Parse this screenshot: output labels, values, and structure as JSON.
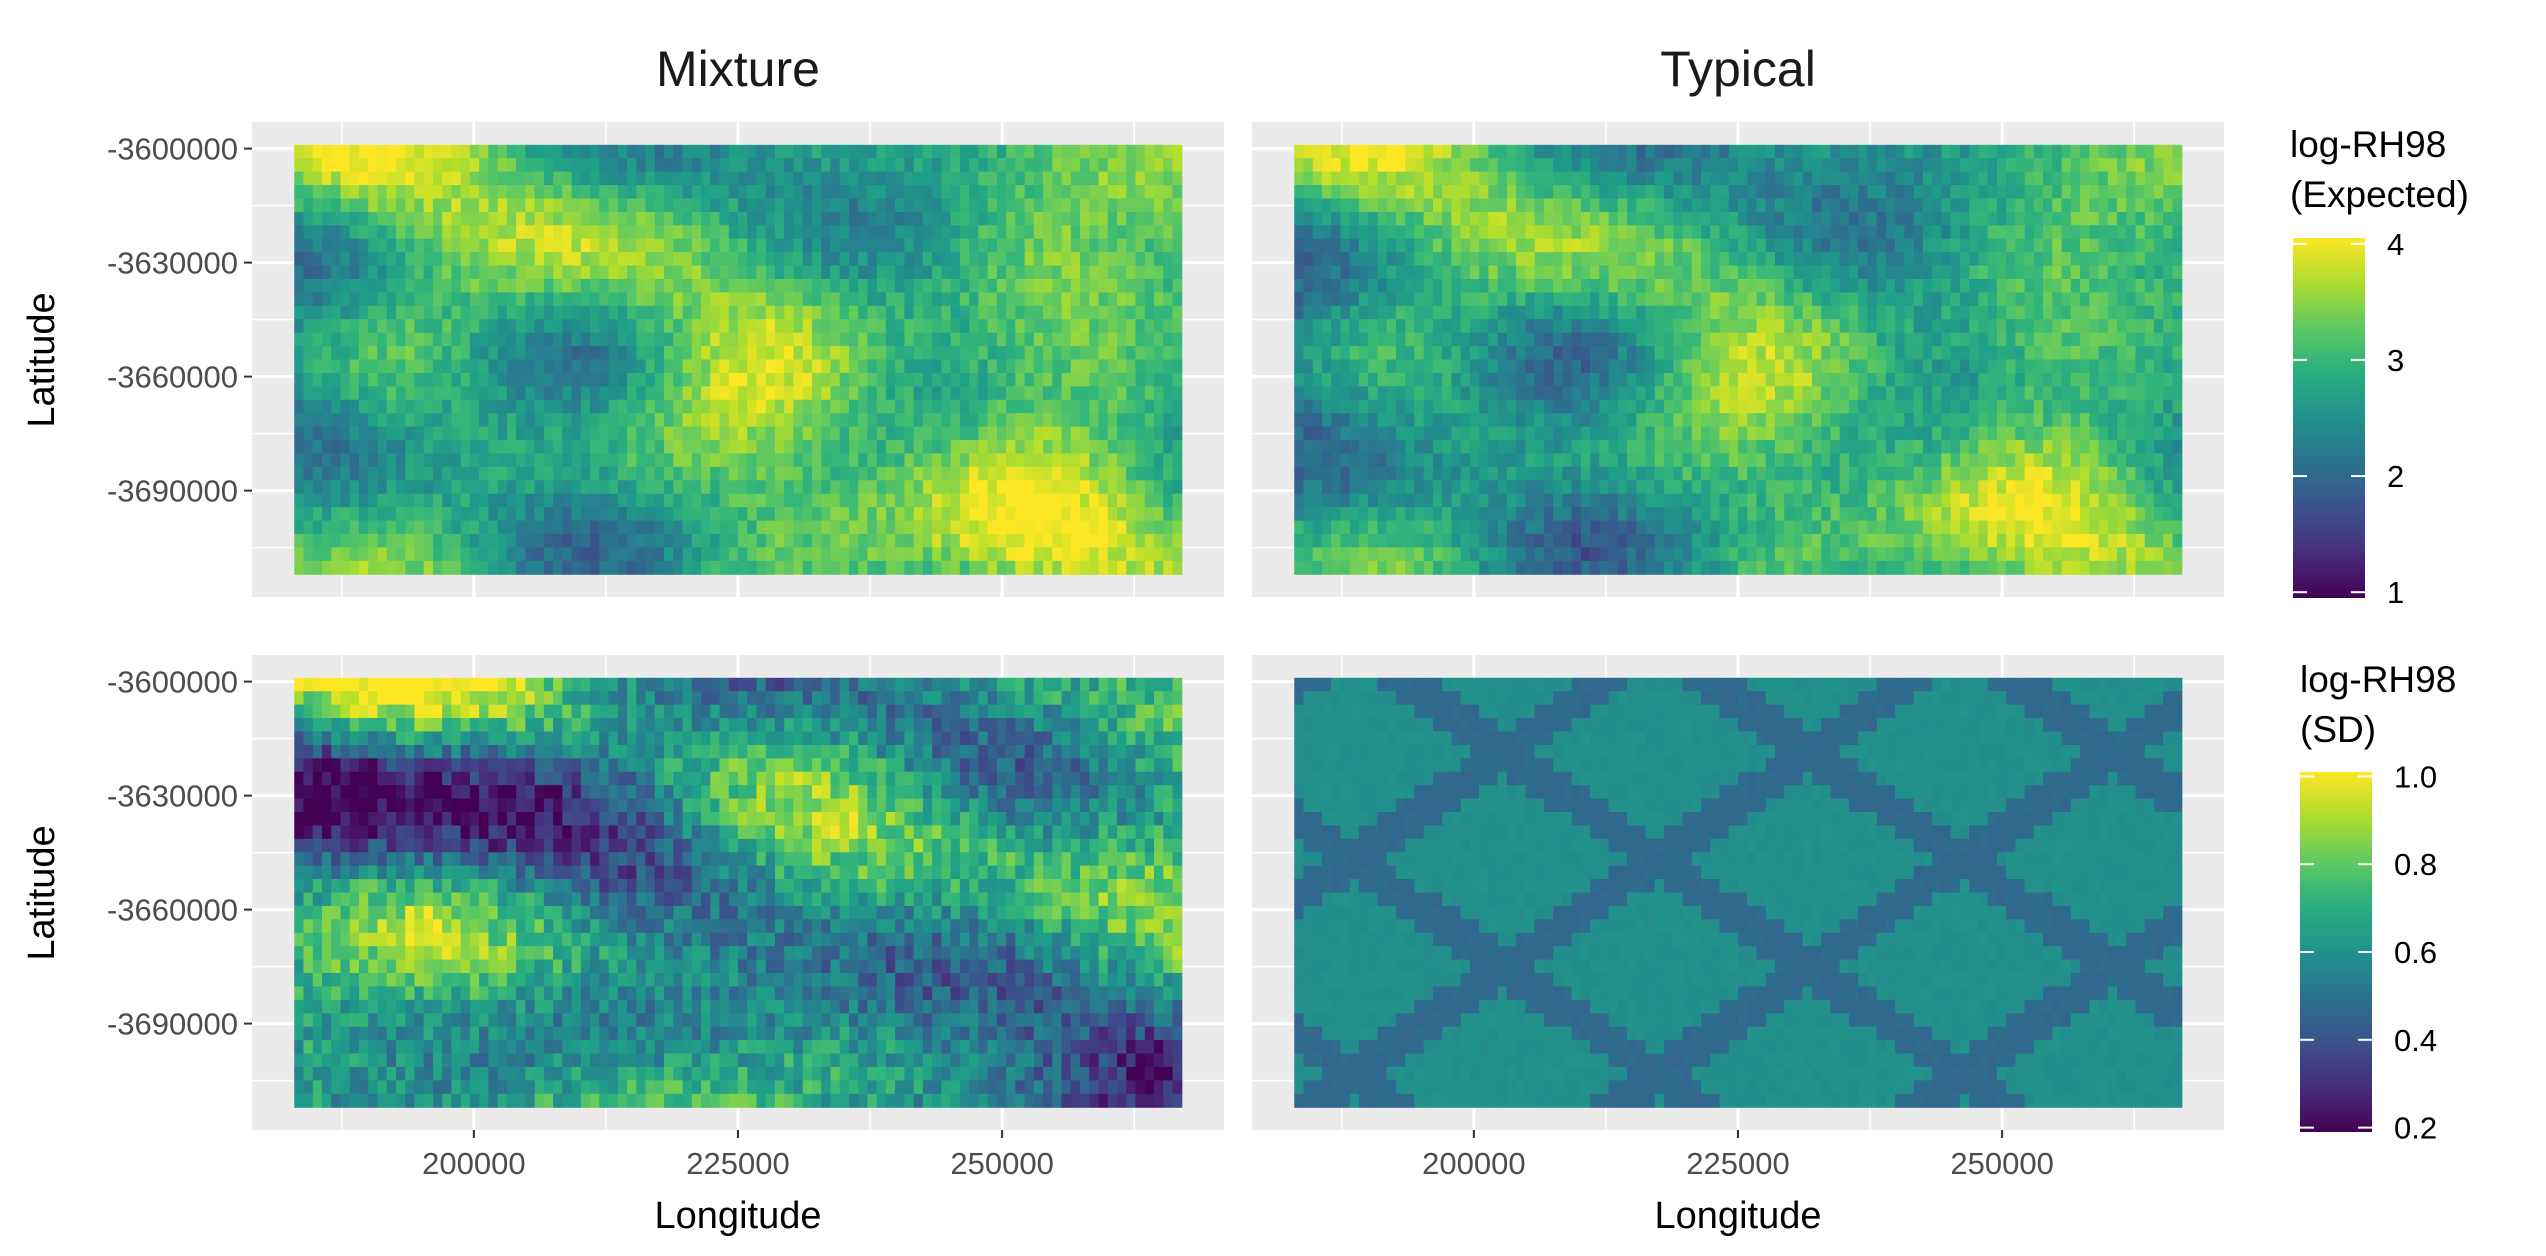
{
  "chart_data": {
    "type": "heatmap",
    "columns": [
      "Mixture",
      "Typical"
    ],
    "xlabel": "Longitude",
    "ylabel": "Latitude",
    "x_ticks": [
      "200000",
      "225000",
      "250000"
    ],
    "x_tick_values": [
      200000,
      225000,
      250000
    ],
    "y_ticks": [
      "-3600000",
      "-3630000",
      "-3660000",
      "-3690000"
    ],
    "y_tick_values": [
      -3600000,
      -3630000,
      -3660000,
      -3690000
    ],
    "xlim": [
      183000,
      267000
    ],
    "ylim": [
      -3712000,
      -3599000
    ],
    "panel_xlim": [
      179000,
      271000
    ],
    "panel_ylim": [
      -3718000,
      -3593000
    ],
    "colormap": "viridis",
    "rows": [
      {
        "legend_title_line1": "log-RH98",
        "legend_title_line2": "(Expected)",
        "color_range": [
          0.95,
          4.05
        ],
        "legend_ticks": [
          "4",
          "3",
          "2",
          "1"
        ],
        "legend_tick_values": [
          4,
          3,
          2,
          1
        ]
      },
      {
        "legend_title_line1": "log-RH98",
        "legend_title_line2": "(SD)",
        "color_range": [
          0.19,
          1.01
        ],
        "legend_ticks": [
          "1.0",
          "0.8",
          "0.6",
          "0.4",
          "0.2"
        ],
        "legend_tick_values": [
          1.0,
          0.8,
          0.6,
          0.4,
          0.2
        ]
      }
    ],
    "colors": {
      "panel_bg": "#ebebeb",
      "grid": "#ffffff",
      "viridis_low": "#440154",
      "viridis_mid": "#21918c",
      "viridis_high": "#fde725"
    }
  }
}
